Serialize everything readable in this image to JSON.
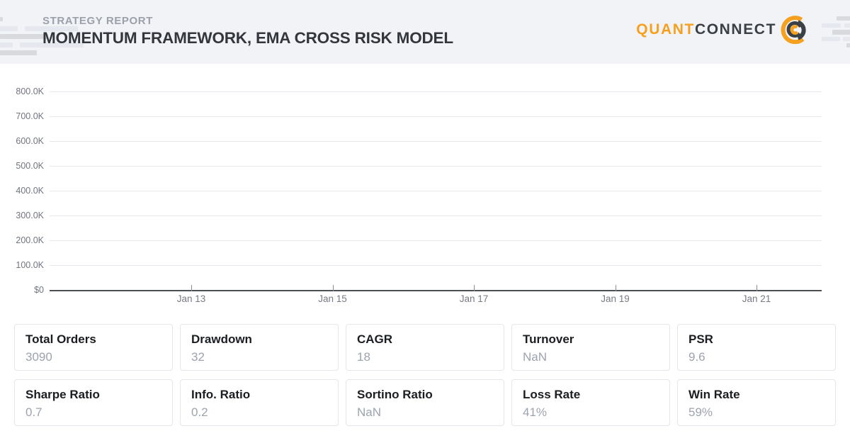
{
  "header": {
    "eyebrow": "STRATEGY REPORT",
    "title": "MOMENTUM FRAMEWORK, EMA CROSS RISK MODEL",
    "brand": {
      "name_primary": "QUANT",
      "name_secondary": "CONNECT",
      "logo_icon": "quantconnect-concentric-rings"
    }
  },
  "colors": {
    "brand_orange": "#f5a01e",
    "brand_dark": "#3b4046",
    "header_bg": "#f2f3f7",
    "grid_line": "#e6e8f0",
    "axis_line": "#4a5056",
    "tick_label": "#70757f",
    "card_border": "#e3e6eb",
    "card_label": "#1a1d21",
    "card_value": "#9ca3af"
  },
  "chart_data": {
    "type": "line",
    "title": "",
    "xlabel": "",
    "ylabel": "",
    "x_ticks": [
      "Jan 13",
      "Jan 15",
      "Jan 17",
      "Jan 19",
      "Jan 21"
    ],
    "y_ticks": [
      "800.0K",
      "700.0K",
      "600.0K",
      "500.0K",
      "400.0K",
      "300.0K",
      "200.0K",
      "100.0K",
      "$0"
    ],
    "y_tick_values": [
      800000,
      700000,
      600000,
      500000,
      400000,
      300000,
      200000,
      100000,
      0
    ],
    "ylim": [
      0,
      875000
    ],
    "grid": true,
    "legend": false,
    "series": [],
    "note": "Equity plot area renders axes and gridlines only; no series data is drawn"
  },
  "stats": {
    "cards": [
      {
        "label": "Total Orders",
        "value": "3090"
      },
      {
        "label": "Drawdown",
        "value": "32"
      },
      {
        "label": "CAGR",
        "value": "18"
      },
      {
        "label": "Turnover",
        "value": "NaN"
      },
      {
        "label": "PSR",
        "value": "9.6"
      },
      {
        "label": "Sharpe Ratio",
        "value": "0.7"
      },
      {
        "label": "Info. Ratio",
        "value": "0.2"
      },
      {
        "label": "Sortino Ratio",
        "value": "NaN"
      },
      {
        "label": "Loss Rate",
        "value": "41%"
      },
      {
        "label": "Win Rate",
        "value": "59%"
      }
    ]
  }
}
